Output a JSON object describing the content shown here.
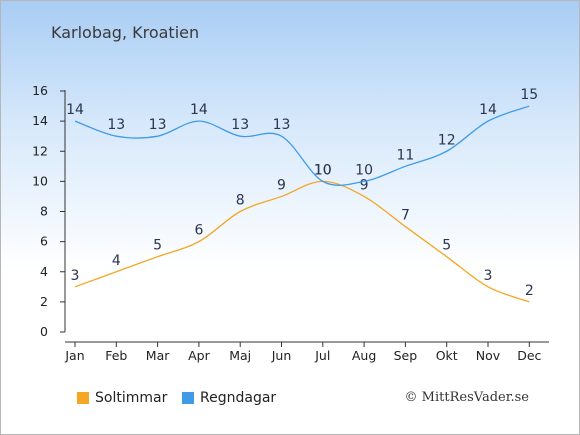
{
  "title": "Karlobag, Kroatien",
  "credit": "© MittResVader.se",
  "chart_data": {
    "type": "line",
    "categories": [
      "Jan",
      "Feb",
      "Mar",
      "Apr",
      "Maj",
      "Jun",
      "Jul",
      "Aug",
      "Sep",
      "Okt",
      "Nov",
      "Dec"
    ],
    "yticks": [
      0,
      2,
      4,
      6,
      8,
      10,
      12,
      14,
      16
    ],
    "ylim": [
      0,
      16
    ],
    "grid": false,
    "legend_position": "bottom",
    "series": [
      {
        "name": "Soltimmar",
        "color": "#f5a623",
        "values": [
          3,
          4,
          5,
          6,
          8,
          9,
          10,
          9,
          7,
          5,
          3,
          2
        ]
      },
      {
        "name": "Regndagar",
        "color": "#3f9be8",
        "values": [
          14,
          13,
          13,
          14,
          13,
          13,
          10,
          10,
          11,
          12,
          14,
          15
        ]
      }
    ]
  }
}
